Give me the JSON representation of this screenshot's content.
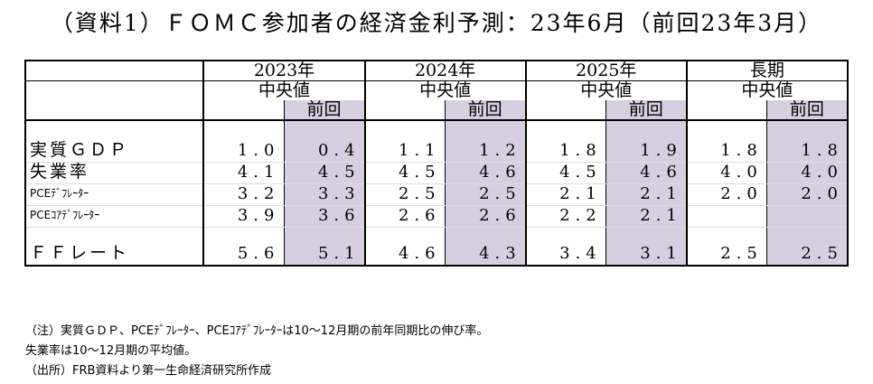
{
  "title": "（資料1）ＦＯＭＣ参加者の経済金利予測：23年6月（前回23年3月）",
  "headers": {
    "years": [
      "2023年",
      "2024年",
      "2025年",
      "長期"
    ],
    "median": "中央値",
    "previous": "前回"
  },
  "rows": [
    {
      "label": "実質ＧＤＰ",
      "values": [
        "1.0",
        "0.4",
        "1.1",
        "1.2",
        "1.8",
        "1.9",
        "1.8",
        "1.8"
      ]
    },
    {
      "label": "失業率",
      "values": [
        "4.1",
        "4.5",
        "4.5",
        "4.6",
        "4.5",
        "4.6",
        "4.0",
        "4.0"
      ]
    },
    {
      "label": "PCEﾃﾞﾌﾚｰﾀｰ",
      "values": [
        "3.2",
        "3.3",
        "2.5",
        "2.5",
        "2.1",
        "2.1",
        "2.0",
        "2.0"
      ]
    },
    {
      "label": "PCEｺｱﾃﾞﾌﾚｰﾀｰ",
      "values": [
        "3.9",
        "3.6",
        "2.6",
        "2.6",
        "2.2",
        "2.1",
        "",
        ""
      ]
    },
    {
      "label": "ＦＦレート",
      "values": [
        "5.6",
        "5.1",
        "4.6",
        "4.3",
        "3.4",
        "3.1",
        "2.5",
        "2.5"
      ]
    }
  ],
  "notes": [
    "（注）実質ＧＤＰ、PCEﾃﾞﾌﾚｰﾀｰ、PCEｺｱﾃﾞﾌﾚｰﾀｰは10～12月期の前年同期比の伸び率。",
    "失業率は10～12月期の平均値。",
    "（出所）FRB資料より第一生命経済研究所作成"
  ],
  "colors": {
    "previous_fill": "#d7cfe0"
  }
}
